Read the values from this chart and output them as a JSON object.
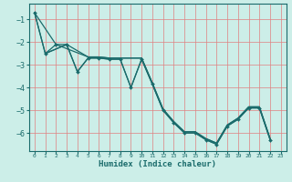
{
  "xlabel": "Humidex (Indice chaleur)",
  "bg_color": "#cceee8",
  "grid_color": "#e08080",
  "line_color": "#1a6b6b",
  "xlim": [
    -0.5,
    23.5
  ],
  "ylim": [
    -6.8,
    -0.3
  ],
  "yticks": [
    -6,
    -5,
    -4,
    -3,
    -2,
    -1
  ],
  "xticks": [
    0,
    1,
    2,
    3,
    4,
    5,
    6,
    7,
    8,
    9,
    10,
    11,
    12,
    13,
    14,
    15,
    16,
    17,
    18,
    19,
    20,
    21,
    22,
    23
  ],
  "series1": [
    [
      0,
      -0.7
    ],
    [
      1,
      -2.5
    ],
    [
      2,
      -2.1
    ],
    [
      3,
      -2.1
    ],
    [
      4,
      -3.3
    ],
    [
      5,
      -2.7
    ],
    [
      6,
      -2.7
    ],
    [
      7,
      -2.75
    ],
    [
      8,
      -2.75
    ],
    [
      9,
      -4.0
    ],
    [
      10,
      -2.75
    ],
    [
      11,
      -3.85
    ],
    [
      12,
      -5.0
    ],
    [
      13,
      -5.55
    ],
    [
      14,
      -6.0
    ],
    [
      15,
      -6.0
    ],
    [
      16,
      -6.3
    ],
    [
      17,
      -6.5
    ],
    [
      18,
      -5.7
    ],
    [
      19,
      -5.4
    ],
    [
      20,
      -4.9
    ],
    [
      21,
      -4.9
    ],
    [
      22,
      -6.3
    ]
  ],
  "series2": [
    [
      0,
      -0.7
    ],
    [
      1,
      -2.5
    ],
    [
      3,
      -2.1
    ],
    [
      5,
      -2.65
    ],
    [
      6,
      -2.65
    ],
    [
      7,
      -2.7
    ],
    [
      8,
      -2.7
    ],
    [
      10,
      -2.7
    ],
    [
      11,
      -3.8
    ],
    [
      12,
      -4.95
    ],
    [
      13,
      -5.5
    ],
    [
      14,
      -5.95
    ],
    [
      15,
      -5.95
    ],
    [
      16,
      -6.25
    ],
    [
      17,
      -6.45
    ],
    [
      18,
      -5.65
    ],
    [
      19,
      -5.35
    ],
    [
      20,
      -4.85
    ],
    [
      21,
      -4.85
    ],
    [
      22,
      -6.25
    ]
  ],
  "series3": [
    [
      1,
      -2.5
    ],
    [
      3,
      -2.1
    ],
    [
      4,
      -3.3
    ],
    [
      5,
      -2.7
    ],
    [
      6,
      -2.7
    ],
    [
      7,
      -2.75
    ],
    [
      8,
      -2.75
    ],
    [
      9,
      -4.0
    ],
    [
      10,
      -2.75
    ],
    [
      11,
      -3.85
    ],
    [
      12,
      -5.0
    ],
    [
      13,
      -5.55
    ],
    [
      14,
      -6.0
    ],
    [
      15,
      -6.0
    ],
    [
      16,
      -6.3
    ],
    [
      17,
      -6.5
    ],
    [
      18,
      -5.7
    ],
    [
      19,
      -5.4
    ],
    [
      20,
      -4.9
    ],
    [
      21,
      -4.9
    ],
    [
      22,
      -6.3
    ]
  ],
  "series4": [
    [
      0,
      -0.7
    ],
    [
      2,
      -2.1
    ],
    [
      5,
      -2.65
    ],
    [
      6,
      -2.65
    ],
    [
      7,
      -2.7
    ],
    [
      8,
      -2.7
    ],
    [
      10,
      -2.7
    ],
    [
      11,
      -3.8
    ],
    [
      12,
      -4.95
    ],
    [
      13,
      -5.5
    ],
    [
      14,
      -5.95
    ],
    [
      15,
      -5.95
    ],
    [
      16,
      -6.25
    ],
    [
      17,
      -6.45
    ],
    [
      18,
      -5.65
    ],
    [
      19,
      -5.35
    ],
    [
      20,
      -4.85
    ],
    [
      21,
      -4.85
    ],
    [
      22,
      -6.25
    ]
  ]
}
